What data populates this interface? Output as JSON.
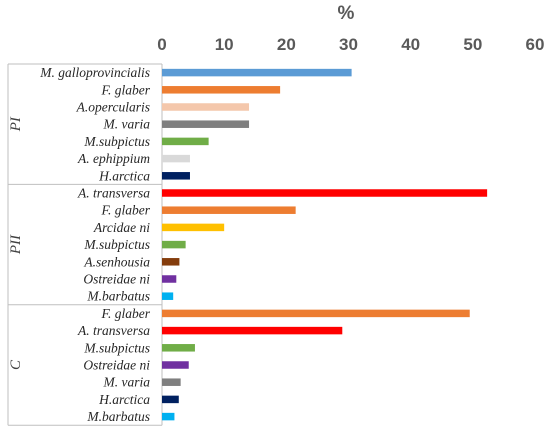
{
  "chart_data": {
    "type": "bar",
    "orientation": "horizontal",
    "xlabel": "%",
    "xlim": [
      0,
      60
    ],
    "xticks": [
      "0",
      "10",
      "20",
      "30",
      "40",
      "50",
      "60"
    ],
    "grid": false,
    "groups": [
      {
        "name": "PI",
        "items": [
          {
            "label": "M. galloprovincialis",
            "value": 30.5,
            "color": "#5b9bd5"
          },
          {
            "label": "F. glaber",
            "value": 19.0,
            "color": "#ed7d31"
          },
          {
            "label": "A.opercularis",
            "value": 14.0,
            "color": "#f4c7ab"
          },
          {
            "label": "M. varia",
            "value": 14.0,
            "color": "#7f7f7f"
          },
          {
            "label": "M.subpictus",
            "value": 7.5,
            "color": "#70ad47"
          },
          {
            "label": "A. ephippium",
            "value": 4.5,
            "color": "#d9d9d9"
          },
          {
            "label": "H.arctica",
            "value": 4.5,
            "color": "#002060"
          }
        ]
      },
      {
        "name": "PII",
        "items": [
          {
            "label": "A. transversa",
            "value": 52.3,
            "color": "#ff0000"
          },
          {
            "label": "F. glaber",
            "value": 21.5,
            "color": "#ed7d31"
          },
          {
            "label": "Arcidae ni",
            "value": 10.0,
            "color": "#ffc000"
          },
          {
            "label": "M.subpictus",
            "value": 3.8,
            "color": "#70ad47"
          },
          {
            "label": "A.senhousia",
            "value": 2.8,
            "color": "#843c0c"
          },
          {
            "label": "Ostreidae ni",
            "value": 2.3,
            "color": "#7030a0"
          },
          {
            "label": "M.barbatus",
            "value": 1.8,
            "color": "#00b0f0"
          }
        ]
      },
      {
        "name": "C",
        "items": [
          {
            "label": "F. glaber",
            "value": 49.5,
            "color": "#ed7d31"
          },
          {
            "label": "A. transversa",
            "value": 29.0,
            "color": "#ff0000"
          },
          {
            "label": "M.subpictus",
            "value": 5.3,
            "color": "#70ad47"
          },
          {
            "label": "Ostreidae ni",
            "value": 4.3,
            "color": "#7030a0"
          },
          {
            "label": "M. varia",
            "value": 3.0,
            "color": "#7f7f7f"
          },
          {
            "label": "H.arctica",
            "value": 2.7,
            "color": "#002060"
          },
          {
            "label": "M.barbatus",
            "value": 2.0,
            "color": "#00b0f0"
          }
        ]
      }
    ]
  }
}
